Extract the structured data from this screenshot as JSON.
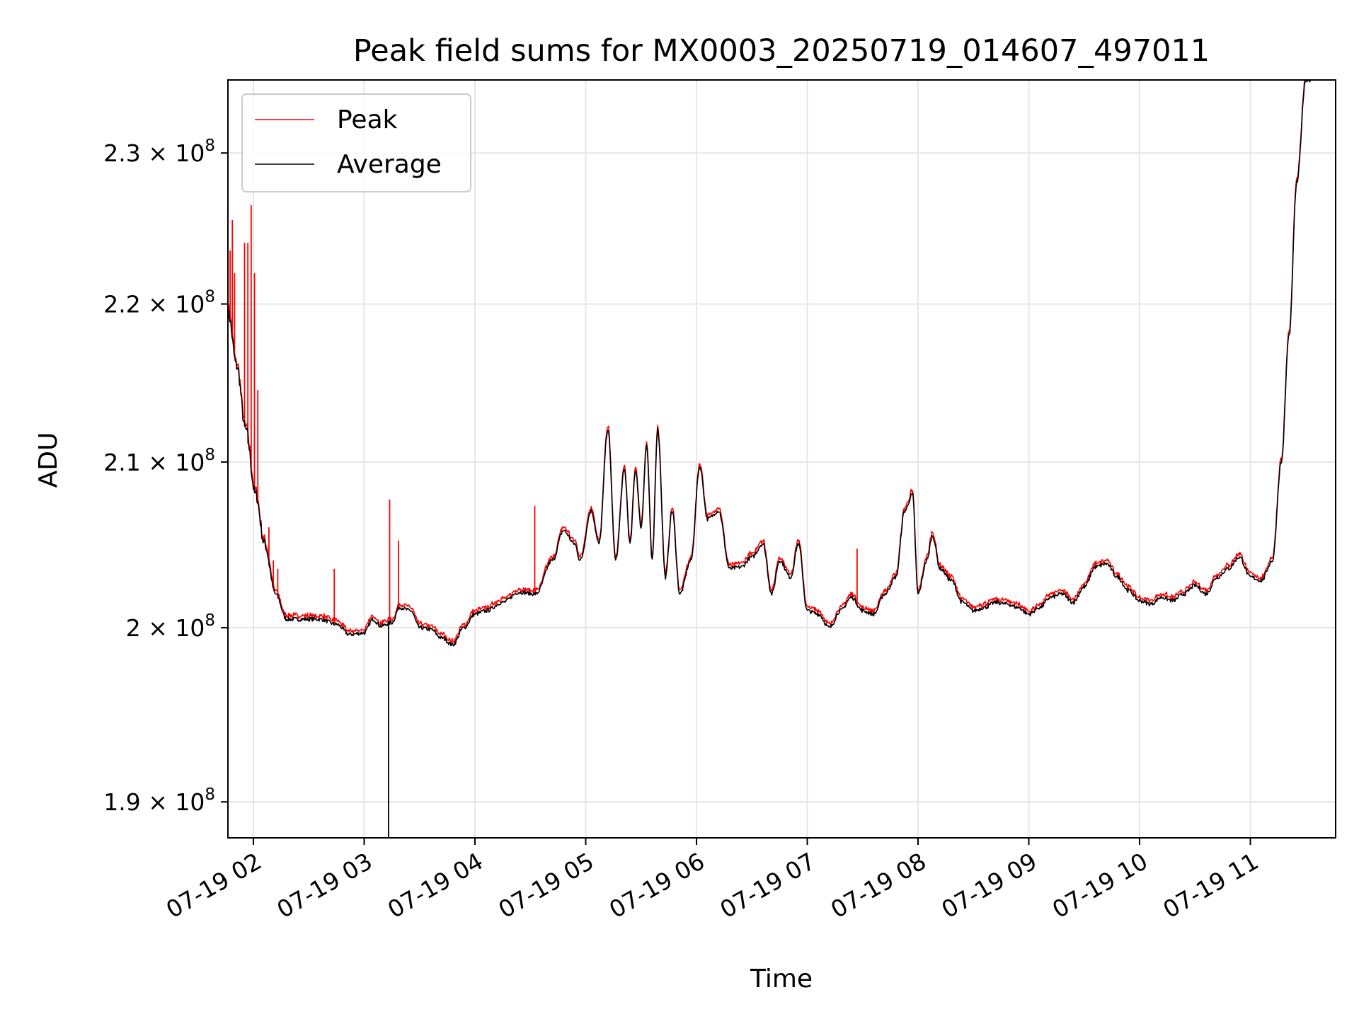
{
  "chart_data": {
    "type": "line",
    "title": "Peak field sums for MX0003_20250719_014607_497011",
    "xlabel": "Time",
    "ylabel": "ADU",
    "x_units": "2025-07-19 local time (decimal hours)",
    "xlim": [
      1.77,
      11.77
    ],
    "ylim": [
      188000000.0,
      235000000.0
    ],
    "y_scale": "log",
    "grid": true,
    "legend_position": "upper-left",
    "x_tick_values": [
      2,
      3,
      4,
      5,
      6,
      7,
      8,
      9,
      10,
      11
    ],
    "x_tick_labels": [
      "07-19 02",
      "07-19 03",
      "07-19 04",
      "07-19 05",
      "07-19 06",
      "07-19 07",
      "07-19 08",
      "07-19 09",
      "07-19 10",
      "07-19 11"
    ],
    "y_ticks": [
      {
        "value": 190000000.0,
        "mantissa": "1.9",
        "base": "10",
        "exp": "8"
      },
      {
        "value": 200000000.0,
        "mantissa": "2",
        "base": "10",
        "exp": "8"
      },
      {
        "value": 210000000.0,
        "mantissa": "2.1",
        "base": "10",
        "exp": "8"
      },
      {
        "value": 220000000.0,
        "mantissa": "2.2",
        "base": "10",
        "exp": "8"
      },
      {
        "value": 230000000.0,
        "mantissa": "2.3",
        "base": "10",
        "exp": "8"
      }
    ],
    "series": [
      {
        "name": "Average",
        "color": "#000000",
        "x": [
          1.77,
          1.85,
          1.93,
          2.02,
          2.1,
          2.2,
          2.3,
          2.45,
          2.6,
          2.75,
          2.87,
          3.0,
          3.08,
          3.15,
          3.25,
          3.32,
          3.42,
          3.5,
          3.6,
          3.7,
          3.8,
          3.9,
          4.0,
          4.1,
          4.25,
          4.4,
          4.55,
          4.7,
          4.8,
          4.9,
          4.95,
          5.05,
          5.12,
          5.2,
          5.27,
          5.35,
          5.4,
          5.45,
          5.5,
          5.55,
          5.6,
          5.65,
          5.72,
          5.78,
          5.85,
          5.95,
          6.03,
          6.1,
          6.2,
          6.3,
          6.4,
          6.5,
          6.6,
          6.68,
          6.75,
          6.85,
          6.92,
          7.0,
          7.1,
          7.2,
          7.3,
          7.4,
          7.5,
          7.6,
          7.7,
          7.8,
          7.88,
          7.95,
          8.0,
          8.08,
          8.13,
          8.2,
          8.3,
          8.4,
          8.5,
          8.6,
          8.7,
          8.8,
          8.9,
          9.0,
          9.1,
          9.2,
          9.3,
          9.4,
          9.5,
          9.6,
          9.7,
          9.8,
          9.9,
          10.0,
          10.1,
          10.2,
          10.3,
          10.4,
          10.5,
          10.6,
          10.7,
          10.8,
          10.9,
          11.0,
          11.1,
          11.2,
          11.28,
          11.35,
          11.42,
          11.5,
          11.56
        ],
        "y": [
          219500000.0,
          216000000.0,
          212000000.0,
          208000000.0,
          205000000.0,
          202000000.0,
          200500000.0,
          200500000.0,
          200500000.0,
          200200000.0,
          199600000.0,
          199700000.0,
          200500000.0,
          200100000.0,
          200300000.0,
          201200000.0,
          201000000.0,
          200000000.0,
          199900000.0,
          199400000.0,
          199000000.0,
          200000000.0,
          200800000.0,
          201000000.0,
          201500000.0,
          202100000.0,
          202000000.0,
          204000000.0,
          205800000.0,
          205000000.0,
          204000000.0,
          207000000.0,
          205000000.0,
          212000000.0,
          204000000.0,
          209500000.0,
          205000000.0,
          209500000.0,
          206000000.0,
          211000000.0,
          204000000.0,
          212000000.0,
          203000000.0,
          207000000.0,
          202000000.0,
          204000000.0,
          209700000.0,
          206500000.0,
          207000000.0,
          203500000.0,
          203600000.0,
          204200000.0,
          205000000.0,
          202000000.0,
          204000000.0,
          203000000.0,
          205000000.0,
          201000000.0,
          200800000.0,
          200000000.0,
          201000000.0,
          201800000.0,
          201000000.0,
          200800000.0,
          202000000.0,
          203000000.0,
          207000000.0,
          208000000.0,
          202000000.0,
          204000000.0,
          205500000.0,
          203500000.0,
          202800000.0,
          201500000.0,
          201000000.0,
          201200000.0,
          201500000.0,
          201400000.0,
          201200000.0,
          200800000.0,
          201200000.0,
          201800000.0,
          202000000.0,
          201500000.0,
          202400000.0,
          203600000.0,
          203800000.0,
          203000000.0,
          202200000.0,
          201600000.0,
          201400000.0,
          201800000.0,
          201600000.0,
          202000000.0,
          202500000.0,
          202000000.0,
          203000000.0,
          203500000.0,
          204200000.0,
          203000000.0,
          202800000.0,
          204000000.0,
          210000000.0,
          218000000.0,
          228000000.0,
          235000000.0,
          235000000.0
        ],
        "dips": [
          {
            "x": 3.22,
            "y": 186000000.0
          }
        ]
      },
      {
        "name": "Peak",
        "color": "#ff0000",
        "follows": "Average",
        "spikes": [
          {
            "x": 1.79,
            "y": 223500000.0
          },
          {
            "x": 1.81,
            "y": 225500000.0
          },
          {
            "x": 1.83,
            "y": 222000000.0
          },
          {
            "x": 1.92,
            "y": 224000000.0
          },
          {
            "x": 1.95,
            "y": 224000000.0
          },
          {
            "x": 1.98,
            "y": 226500000.0
          },
          {
            "x": 2.01,
            "y": 222000000.0
          },
          {
            "x": 2.04,
            "y": 214500000.0
          },
          {
            "x": 2.14,
            "y": 206000000.0
          },
          {
            "x": 2.18,
            "y": 204000000.0
          },
          {
            "x": 2.22,
            "y": 203500000.0
          },
          {
            "x": 2.73,
            "y": 203500000.0
          },
          {
            "x": 3.23,
            "y": 207700000.0
          },
          {
            "x": 3.31,
            "y": 205200000.0
          },
          {
            "x": 4.54,
            "y": 207300000.0
          },
          {
            "x": 7.45,
            "y": 204700000.0
          }
        ]
      }
    ]
  }
}
